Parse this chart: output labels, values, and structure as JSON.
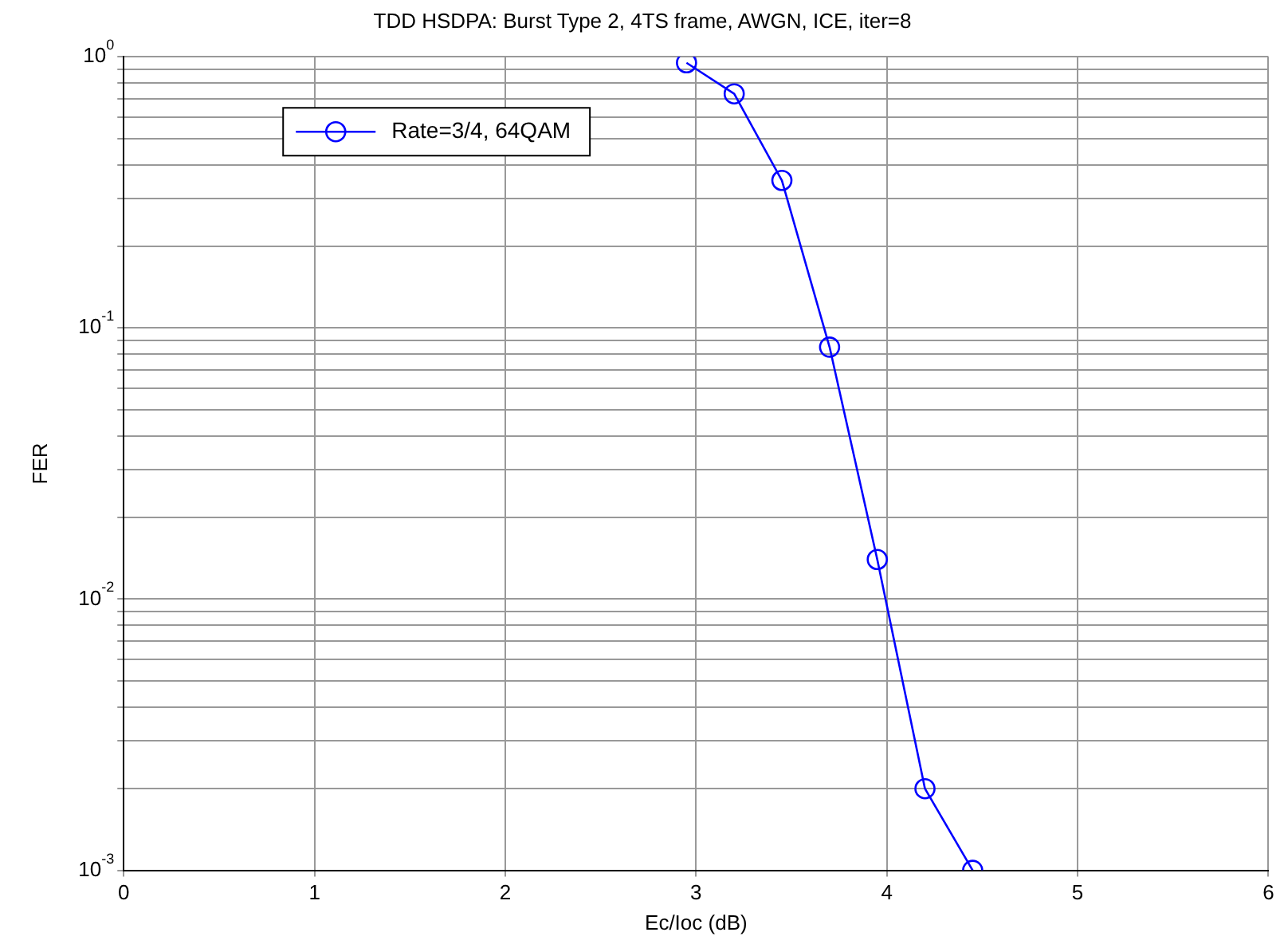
{
  "chart_data": {
    "type": "line",
    "title": "TDD HSDPA: Burst Type 2, 4TS frame, AWGN, ICE, iter=8",
    "xlabel": "Ec/Ioc (dB)",
    "ylabel": "FER",
    "x": [
      2.95,
      3.2,
      3.45,
      3.7,
      3.95,
      4.2,
      4.45
    ],
    "series": [
      {
        "name": "Rate=3/4, 64QAM",
        "color": "#0000ff",
        "values": [
          0.95,
          0.73,
          0.35,
          0.085,
          0.014,
          0.002,
          0.001
        ]
      }
    ],
    "log": "y",
    "xlim": [
      0,
      6
    ],
    "xticks": [
      0,
      1,
      2,
      3,
      4,
      5,
      6
    ],
    "ylim": [
      0.001,
      1
    ],
    "yticks": [
      {
        "value": 0.001,
        "label": "10$^{-3}$"
      },
      {
        "value": 0.002,
        "label": null
      },
      {
        "value": 0.003,
        "label": null
      },
      {
        "value": 0.004,
        "label": null
      },
      {
        "value": 0.005,
        "label": null
      },
      {
        "value": 0.006,
        "label": null
      },
      {
        "value": 0.007,
        "label": null
      },
      {
        "value": 0.008,
        "label": null
      },
      {
        "value": 0.009,
        "label": null
      },
      {
        "value": 0.01,
        "label": "10$^{-2}$"
      },
      {
        "value": 0.02,
        "label": null
      },
      {
        "value": 0.03,
        "label": null
      },
      {
        "value": 0.04,
        "label": null
      },
      {
        "value": 0.05,
        "label": null
      },
      {
        "value": 0.06,
        "label": null
      },
      {
        "value": 0.07,
        "label": null
      },
      {
        "value": 0.08,
        "label": null
      },
      {
        "value": 0.09,
        "label": null
      },
      {
        "value": 0.1,
        "label": "10$^{-1}$"
      },
      {
        "value": 0.2,
        "label": null
      },
      {
        "value": 0.3,
        "label": null
      },
      {
        "value": 0.4,
        "label": null
      },
      {
        "value": 0.5,
        "label": null
      },
      {
        "value": 0.6,
        "label": null
      },
      {
        "value": 0.7,
        "label": null
      },
      {
        "value": 0.8,
        "label": null
      },
      {
        "value": 0.9,
        "label": null
      },
      {
        "value": 1,
        "label": "10$^{0}$"
      }
    ],
    "grid": true,
    "legend": "top left",
    "marker": "circle",
    "line_style": "solid"
  }
}
